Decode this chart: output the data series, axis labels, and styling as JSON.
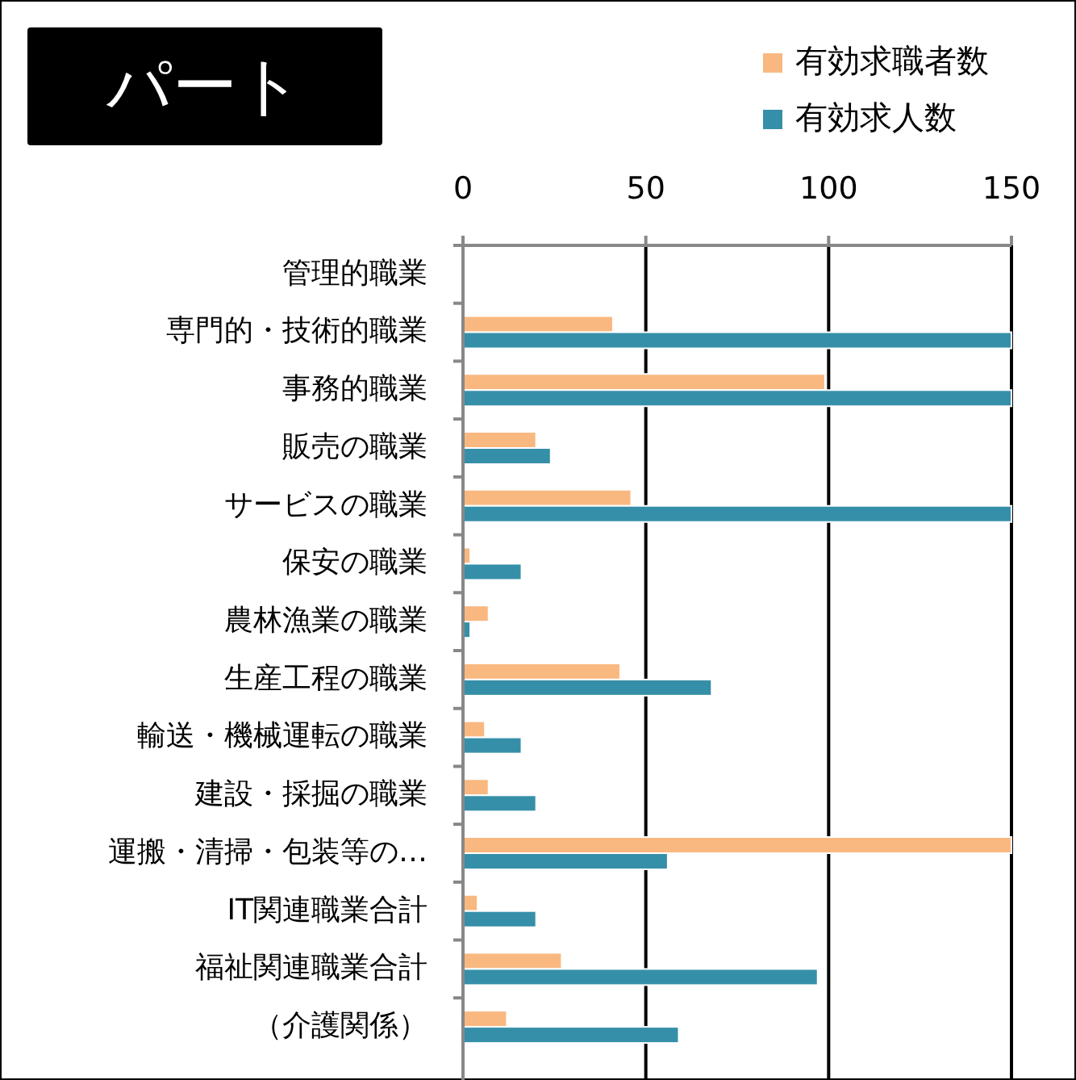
{
  "chart_data": {
    "type": "bar",
    "orientation": "horizontal",
    "title": "パート",
    "categories": [
      "管理的職業",
      "専門的・技術的職業",
      "事務的職業",
      "販売の職業",
      "サービスの職業",
      "保安の職業",
      "農林漁業の職業",
      "生産工程の職業",
      "輸送・機械運転の職業",
      "建設・採掘の職業",
      "運搬・清掃・包装等の…",
      "IT関連職業合計",
      "福祉関連職業合計",
      "（介護関係）"
    ],
    "series": [
      {
        "name": "有効求職者数",
        "color": "#f9b880",
        "values": [
          0,
          41,
          99,
          20,
          46,
          2,
          7,
          43,
          6,
          7,
          150,
          4,
          27,
          12
        ]
      },
      {
        "name": "有効求人数",
        "color": "#368fa8",
        "values": [
          0,
          150,
          150,
          24,
          150,
          16,
          2,
          68,
          16,
          20,
          56,
          20,
          97,
          59
        ]
      }
    ],
    "xlim": [
      0,
      150
    ],
    "xticks": [
      0,
      50,
      100,
      150
    ],
    "grid": "x",
    "legend": "top right"
  }
}
